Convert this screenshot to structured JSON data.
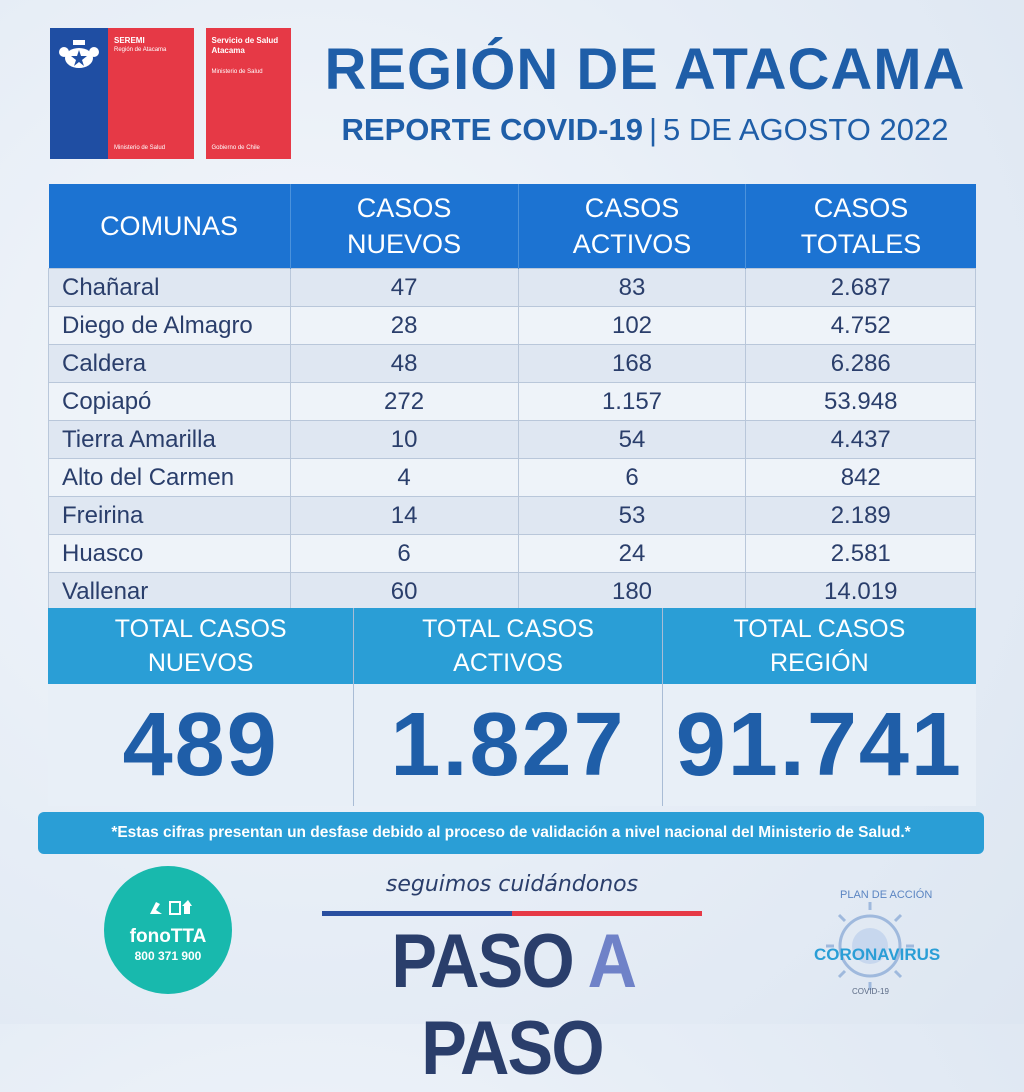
{
  "logo": {
    "seremi_title": "SEREMI",
    "seremi_sub": "Región de Atacama",
    "seremi_foot": "Ministerio de Salud",
    "servicio_title": "Servicio de Salud Atacama",
    "servicio_sub": "Ministerio de Salud",
    "servicio_foot": "Gobierno de Chile"
  },
  "header": {
    "title": "REGIÓN DE ATACAMA",
    "report": "REPORTE COVID-19",
    "date": "5 DE AGOSTO 2022"
  },
  "table": {
    "columns": [
      "COMUNAS",
      "CASOS NUEVOS",
      "CASOS ACTIVOS",
      "CASOS TOTALES"
    ],
    "rows": [
      {
        "comuna": "Chañaral",
        "nuevos": "47",
        "activos": "83",
        "totales": "2.687"
      },
      {
        "comuna": "Diego de Almagro",
        "nuevos": "28",
        "activos": "102",
        "totales": "4.752"
      },
      {
        "comuna": "Caldera",
        "nuevos": "48",
        "activos": "168",
        "totales": "6.286"
      },
      {
        "comuna": "Copiapó",
        "nuevos": "272",
        "activos": "1.157",
        "totales": "53.948"
      },
      {
        "comuna": "Tierra Amarilla",
        "nuevos": "10",
        "activos": "54",
        "totales": "4.437"
      },
      {
        "comuna": "Alto del Carmen",
        "nuevos": "4",
        "activos": "6",
        "totales": "842"
      },
      {
        "comuna": "Freirina",
        "nuevos": "14",
        "activos": "53",
        "totales": "2.189"
      },
      {
        "comuna": "Huasco",
        "nuevos": "6",
        "activos": "24",
        "totales": "2.581"
      },
      {
        "comuna": "Vallenar",
        "nuevos": "60",
        "activos": "180",
        "totales": "14.019"
      }
    ]
  },
  "totals": [
    {
      "label_1": "TOTAL CASOS",
      "label_2": "NUEVOS",
      "value": "489"
    },
    {
      "label_1": "TOTAL CASOS",
      "label_2": "ACTIVOS",
      "value": "1.827"
    },
    {
      "label_1": "TOTAL CASOS",
      "label_2": "REGIÓN",
      "value": "91.741"
    }
  ],
  "note": "*Estas cifras presentan un desfase debido al proceso de validación a nivel nacional del Ministerio de Salud.*",
  "footer": {
    "fono_brand": "fonoTTA",
    "fono_phone": "800 371 900",
    "slogan": "seguimos cuidándonos",
    "paso_1": "PASO",
    "paso_a": "A",
    "paso_2": "PASO",
    "plan": "PLAN DE ACCIÓN",
    "corona": "CORONAVIRUS",
    "covid": "COVID-19"
  },
  "colors": {
    "brand_blue": "#1f5ea8",
    "header_blue": "#1c73d2",
    "accent_cyan": "#2a9ed6",
    "gov_red": "#e63946",
    "fono_teal": "#18b9ad"
  }
}
